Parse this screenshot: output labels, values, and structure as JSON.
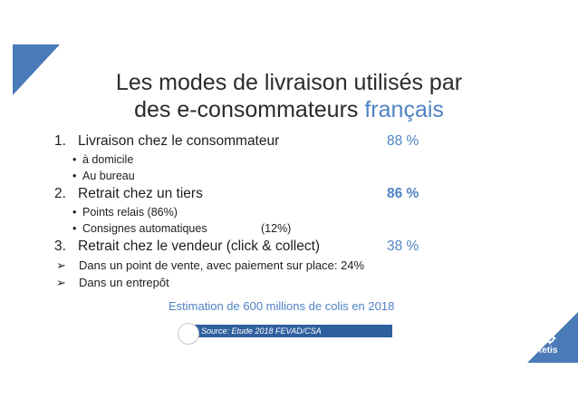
{
  "title": {
    "line1": "Les modes de livraison utilisés par",
    "line2_main": "des e-consommateurs",
    "line2_accent": "français"
  },
  "items": [
    {
      "number": "1.",
      "label": "Livraison chez le consommateur",
      "percent": "88 %",
      "bold": false,
      "subitems": [
        {
          "bullet": "•",
          "text": "à domicile",
          "value": ""
        },
        {
          "bullet": "•",
          "text": "Au bureau",
          "value": ""
        }
      ]
    },
    {
      "number": "2.",
      "label": "Retrait chez un tiers",
      "percent": "86 %",
      "bold": true,
      "subitems": [
        {
          "bullet": "•",
          "text": "Points relais (86%)",
          "value": ""
        },
        {
          "bullet": "•",
          "text": "Consignes automatiques",
          "value": "(12%)"
        }
      ]
    },
    {
      "number": "3.",
      "label": "Retrait chez le vendeur (click & collect)",
      "percent": "38 %",
      "bold": false,
      "subitems": []
    }
  ],
  "arrow_items": [
    {
      "arrow": "➢",
      "text": "Dans un point de vente, avec paiement sur place: 24%"
    },
    {
      "arrow": "➢",
      "text": "Dans un entrepôt"
    }
  ],
  "estimation": "Estimation de 600 millions de colis en 2018",
  "source": "Source: Etude 2018 FEVAD/CSA",
  "logo": {
    "text": "Retis",
    "icon": "gear-icon"
  },
  "colors": {
    "accent": "#4f83c4",
    "corner": "#4a7ab8",
    "source_bar": "#2f5f9e"
  }
}
